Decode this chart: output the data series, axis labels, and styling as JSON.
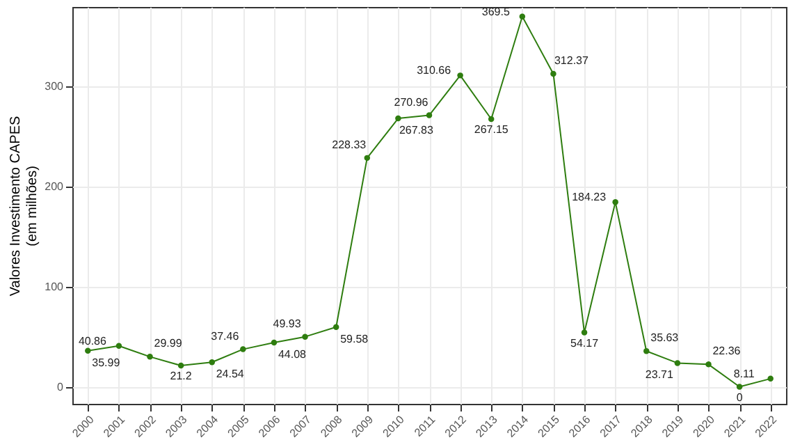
{
  "chart_data": {
    "type": "line",
    "ylabel": "Valores Investimento CAPES\n(em milhões)",
    "categories": [
      "2000",
      "2001",
      "2002",
      "2003",
      "2004",
      "2005",
      "2006",
      "2007",
      "2008",
      "2009",
      "2010",
      "2011",
      "2012",
      "2013",
      "2014",
      "2015",
      "2016",
      "2017",
      "2018",
      "2019",
      "2020",
      "2021",
      "2022"
    ],
    "series": [
      {
        "color": "#2e7d0f",
        "values": [
          35.99,
          40.86,
          29.99,
          21.2,
          24.54,
          37.46,
          44.08,
          49.93,
          59.58,
          228.33,
          267.83,
          270.96,
          310.66,
          267.15,
          369.5,
          312.37,
          54.17,
          184.23,
          35.63,
          23.71,
          22.36,
          0,
          8.11
        ]
      }
    ],
    "ylim": [
      -17,
      379
    ],
    "yticks": [
      0,
      100,
      200,
      300
    ],
    "grid": true,
    "marker": "circle",
    "line_style": "solid",
    "data_labels": true
  }
}
